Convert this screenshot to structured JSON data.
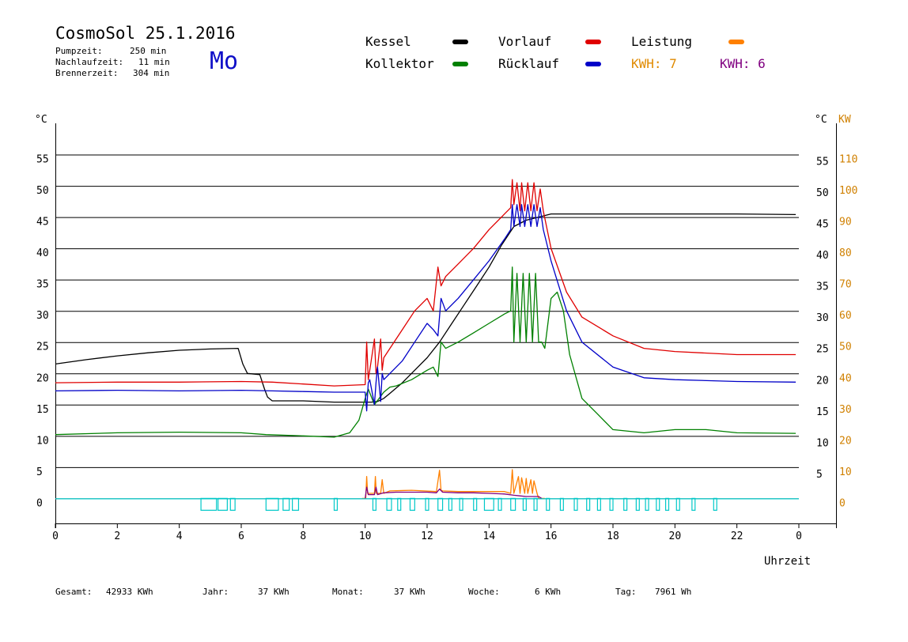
{
  "header": {
    "title": "CosmoSol 25.1.2016",
    "pump_label": "Pumpzeit:",
    "pump_value": "250 min",
    "nachlauf_label": "Nachlaufzeit:",
    "nachlauf_value": "11 min",
    "brenner_label": "Brennerzeit:",
    "brenner_value": "304 min",
    "day": "Mo"
  },
  "legend": {
    "kessel": "Kessel",
    "kollektor": "Kollektor",
    "vorlauf": "Vorlauf",
    "ruecklauf": "Rücklauf",
    "leistung": "Leistung",
    "kwh1": "KWH: 7",
    "kwh2": "KWH: 6"
  },
  "colors": {
    "kessel": "#000000",
    "kollektor": "#008000",
    "vorlauf": "#e00000",
    "ruecklauf": "#0000c8",
    "leistung": "#ff8000",
    "kwh2": "#800080",
    "pump": "#00c8c8",
    "right_axis": "#d08000",
    "day": "#1010c8"
  },
  "footer": {
    "gesamt_label": "Gesamt:",
    "gesamt_value": "42933 KWh",
    "jahr_label": "Jahr:",
    "jahr_value": "37 KWh",
    "monat_label": "Monat:",
    "monat_value": "37 KWh",
    "woche_label": "Woche:",
    "woche_value": "6 KWh",
    "tag_label": "Tag:",
    "tag_value": "7961 Wh"
  },
  "chart_data": {
    "type": "line",
    "xlabel": "Uhrzeit",
    "ylabel_left": "°C",
    "ylabel_right_temp": "°C",
    "ylabel_right_power": "KW",
    "x_ticks": [
      0,
      2,
      4,
      6,
      8,
      10,
      12,
      14,
      16,
      18,
      20,
      22
    ],
    "x_ticks_labels": [
      "0",
      "2",
      "4",
      "6",
      "8",
      "10",
      "12",
      "14",
      "16",
      "18",
      "20",
      "22",
      "0"
    ],
    "xlim": [
      0,
      24
    ],
    "ylim": [
      -4,
      60
    ],
    "y_ticks": [
      0,
      5,
      10,
      15,
      20,
      25,
      30,
      35,
      40,
      45,
      50,
      55
    ],
    "y_ticks_labels": [
      "0",
      "5",
      "10",
      "15",
      "20",
      "25",
      "30",
      "35",
      "40",
      "45",
      "50",
      "55"
    ],
    "power_ticks": [
      0,
      10,
      20,
      30,
      40,
      50,
      60,
      70,
      80,
      90,
      100,
      110
    ],
    "power_ticks_labels": [
      "0",
      "10",
      "20",
      "30",
      "40",
      "50",
      "60",
      "70",
      "80",
      "90",
      "100",
      "110"
    ],
    "grid": true,
    "series": [
      {
        "name": "Kessel",
        "color_key": "kessel",
        "x": [
          0,
          1,
          2,
          3,
          4,
          5,
          5.9,
          6.05,
          6.2,
          6.6,
          6.75,
          6.85,
          7,
          8,
          9,
          10.2,
          10.4,
          10.6,
          10.8,
          11.2,
          11.6,
          12,
          12.4,
          12.8,
          13.2,
          13.6,
          14,
          14.4,
          14.8,
          15.2,
          15.6,
          16,
          17,
          18,
          20,
          22,
          23.9
        ],
        "y": [
          21.5,
          22.2,
          22.8,
          23.3,
          23.7,
          23.9,
          24,
          21.5,
          20,
          19.8,
          17.5,
          16.2,
          15.6,
          15.6,
          15.4,
          15.4,
          15.5,
          16,
          16.8,
          18.5,
          20.5,
          22.5,
          25,
          28,
          31,
          34,
          37,
          40.5,
          43.5,
          44.5,
          45,
          45.5,
          45.5,
          45.5,
          45.5,
          45.5,
          45.4
        ]
      },
      {
        "name": "Kollektor",
        "color_key": "kollektor",
        "x": [
          0,
          2,
          4,
          6,
          6.8,
          8,
          9,
          9.5,
          9.8,
          10.0,
          10.1,
          10.3,
          10.6,
          10.8,
          11,
          11.5,
          12,
          12.2,
          12.35,
          12.45,
          12.6,
          13,
          13.5,
          14,
          14.5,
          14.7,
          14.75,
          14.8,
          14.9,
          15.0,
          15.1,
          15.2,
          15.3,
          15.4,
          15.5,
          15.6,
          15.7,
          15.8,
          16,
          16.2,
          16.4,
          16.6,
          17,
          17.5,
          18,
          19,
          20,
          21,
          22,
          23.9
        ],
        "y": [
          10.2,
          10.5,
          10.6,
          10.5,
          10.2,
          10,
          9.8,
          10.5,
          12.5,
          16,
          17.5,
          15,
          17,
          17.8,
          18,
          19,
          20.5,
          21,
          19.5,
          25,
          24,
          25,
          26.5,
          28,
          29.5,
          30,
          37,
          25,
          36,
          25,
          36,
          25,
          36,
          25,
          36,
          25,
          25,
          24,
          32,
          33,
          30,
          23,
          16,
          13.5,
          11,
          10.5,
          11,
          11,
          10.5,
          10.4
        ]
      },
      {
        "name": "Vorlauf",
        "color_key": "vorlauf",
        "x": [
          0,
          2,
          4,
          6,
          7,
          8,
          9,
          10.0,
          10.05,
          10.1,
          10.15,
          10.3,
          10.35,
          10.4,
          10.5,
          10.55,
          10.6,
          10.8,
          11.2,
          11.6,
          12,
          12.2,
          12.35,
          12.45,
          12.6,
          13,
          13.5,
          14,
          14.5,
          14.7,
          14.75,
          14.8,
          14.9,
          15.0,
          15.05,
          15.15,
          15.25,
          15.35,
          15.45,
          15.55,
          15.65,
          15.75,
          16,
          16.5,
          17,
          18,
          19,
          20,
          22,
          23.9
        ],
        "y": [
          18.5,
          18.6,
          18.6,
          18.7,
          18.6,
          18.3,
          18,
          18.2,
          25,
          19,
          20.5,
          25.5,
          20,
          21,
          25.5,
          20.5,
          22.5,
          24,
          27,
          30,
          32,
          30,
          37,
          34,
          35.5,
          37.5,
          40,
          43,
          45.5,
          46.5,
          51,
          47,
          50.5,
          46,
          50.5,
          46,
          50.5,
          46,
          50.5,
          46,
          49.5,
          46,
          40,
          33,
          29,
          26,
          24,
          23.5,
          23,
          23
        ]
      },
      {
        "name": "Rücklauf",
        "color_key": "ruecklauf",
        "x": [
          0,
          2,
          4,
          6,
          7,
          8,
          9,
          10.0,
          10.05,
          10.1,
          10.15,
          10.3,
          10.35,
          10.4,
          10.5,
          10.55,
          10.6,
          10.8,
          11.2,
          11.6,
          12,
          12.2,
          12.35,
          12.45,
          12.6,
          13,
          13.5,
          14,
          14.5,
          14.7,
          14.75,
          14.8,
          14.9,
          15.0,
          15.05,
          15.15,
          15.25,
          15.35,
          15.45,
          15.55,
          15.65,
          15.75,
          16,
          16.5,
          17,
          18,
          19,
          20,
          22,
          23.9
        ],
        "y": [
          17.2,
          17.3,
          17.2,
          17.3,
          17.2,
          17.1,
          17.0,
          17,
          14,
          18.5,
          19,
          15,
          18.5,
          21,
          15.5,
          20,
          19,
          20,
          22,
          25,
          28,
          27,
          26,
          32,
          30,
          32,
          35,
          38,
          41.5,
          43,
          47,
          43.5,
          47,
          43.5,
          47,
          43.5,
          47,
          43.5,
          47,
          43.5,
          46.5,
          43,
          38,
          30,
          25,
          21,
          19.3,
          19,
          18.7,
          18.6
        ]
      },
      {
        "name": "Leistung",
        "color_key": "leistung",
        "x": [
          9.9,
          10.02,
          10.05,
          10.08,
          10.3,
          10.33,
          10.36,
          10.5,
          10.55,
          10.6,
          10.8,
          11.5,
          12.3,
          12.4,
          12.45,
          12.5,
          13,
          14,
          14.5,
          14.7,
          14.75,
          14.8,
          14.95,
          15.0,
          15.05,
          15.15,
          15.2,
          15.25,
          15.35,
          15.4,
          15.45,
          15.55,
          15.6,
          15.8
        ],
        "y": [
          0,
          0,
          3.5,
          0.8,
          0.8,
          3.5,
          0.8,
          0.8,
          3,
          0.8,
          1.2,
          1.3,
          1.1,
          4.5,
          1.3,
          1.2,
          1.1,
          1.1,
          1.1,
          0.8,
          4.6,
          0.8,
          3.5,
          0.8,
          3.3,
          0.8,
          3.2,
          0.8,
          3,
          0.8,
          2.8,
          0.8,
          0,
          0
        ]
      },
      {
        "name": "KWH",
        "color_key": "kwh2",
        "x": [
          10.0,
          10.05,
          10.1,
          10.3,
          10.35,
          10.4,
          10.6,
          11,
          11.5,
          12,
          12.3,
          12.4,
          12.5,
          13,
          13.5,
          14,
          14.5,
          14.8,
          15.0,
          15.2,
          15.4,
          15.6,
          15.7
        ],
        "y": [
          0,
          1.8,
          0.6,
          0.6,
          1.8,
          0.6,
          0.9,
          1,
          1,
          1,
          0.9,
          1.5,
          1,
          0.9,
          0.9,
          0.8,
          0.7,
          0.5,
          0.4,
          0.3,
          0.3,
          0.3,
          0
        ]
      }
    ],
    "pump_on_intervals": [
      [
        4.7,
        5.2
      ],
      [
        5.25,
        5.55
      ],
      [
        5.65,
        5.8
      ],
      [
        6.8,
        7.2
      ],
      [
        7.35,
        7.55
      ],
      [
        7.65,
        7.85
      ],
      [
        9.0,
        9.1
      ],
      [
        10.25,
        10.35
      ],
      [
        10.7,
        10.85
      ],
      [
        11.05,
        11.15
      ],
      [
        11.45,
        11.6
      ],
      [
        11.95,
        12.05
      ],
      [
        12.35,
        12.5
      ],
      [
        12.7,
        12.8
      ],
      [
        13.05,
        13.15
      ],
      [
        13.5,
        13.6
      ],
      [
        13.85,
        14.15
      ],
      [
        14.3,
        14.4
      ],
      [
        14.7,
        14.85
      ],
      [
        15.1,
        15.2
      ],
      [
        15.45,
        15.55
      ],
      [
        15.85,
        15.95
      ],
      [
        16.3,
        16.4
      ],
      [
        16.75,
        16.85
      ],
      [
        17.15,
        17.25
      ],
      [
        17.5,
        17.6
      ],
      [
        17.9,
        18.0
      ],
      [
        18.35,
        18.45
      ],
      [
        18.75,
        18.85
      ],
      [
        19.05,
        19.15
      ],
      [
        19.4,
        19.5
      ],
      [
        19.7,
        19.8
      ],
      [
        20.05,
        20.15
      ],
      [
        20.55,
        20.65
      ],
      [
        21.25,
        21.35
      ]
    ]
  }
}
